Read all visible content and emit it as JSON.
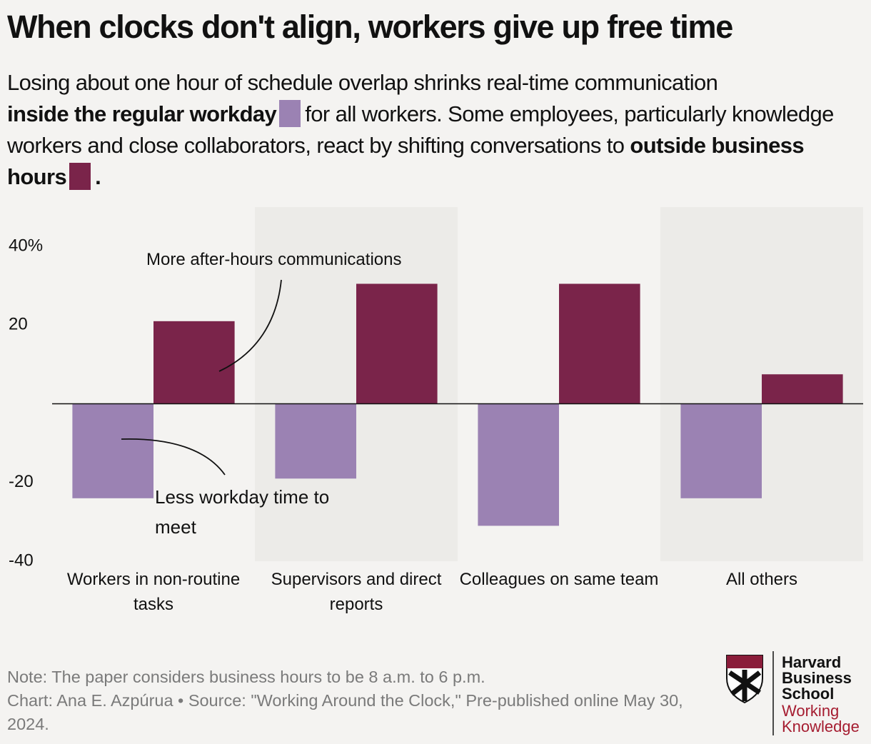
{
  "chart_data": {
    "type": "bar",
    "title": "When clocks don't align, workers give up free time",
    "subtitle_parts": [
      "Losing about one hour of schedule overlap shrinks real-time communication",
      "for all workers. Some employees, particularly knowledge workers and close collaborators, react by shifting conversations to",
      "."
    ],
    "categories": [
      "Workers in non-routine tasks",
      "Supervisors and direct reports",
      "Colleagues on same team",
      "All others"
    ],
    "series": [
      {
        "name": "inside the regular workday",
        "color": "#9b82b3",
        "values": [
          -24,
          -19,
          -31,
          -24
        ]
      },
      {
        "name": "outside business hours",
        "color": "#7a244a",
        "values": [
          21,
          30.5,
          30.5,
          7.5
        ]
      }
    ],
    "ylim": [
      -40,
      50
    ],
    "yticks": [
      -40,
      -20,
      20,
      {
        "value": 40,
        "label": "40%"
      }
    ],
    "band_color": "#ecebe8",
    "annotations": [
      "More after-hours communications",
      "Less workday time to meet"
    ],
    "notes": [
      "Note: The paper considers business hours to be 8 a.m. to 6 p.m.",
      "Chart: Ana E. Azpúrua  • Source: \"Working Around the Clock,\" Pre-published online May 30, 2024."
    ],
    "logo": {
      "school": [
        "Harvard",
        "Business",
        "School"
      ],
      "publication": [
        "Working",
        "Knowledge"
      ]
    }
  }
}
